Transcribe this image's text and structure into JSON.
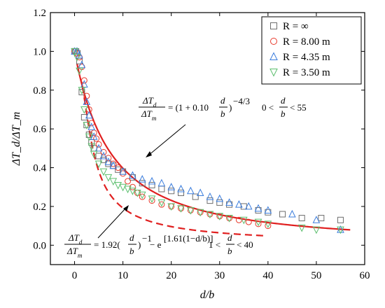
{
  "chart_data": {
    "type": "scatter",
    "xlabel": "d/b",
    "ylabel": "ΔT_d/ΔT_m",
    "xlim": [
      -5,
      60
    ],
    "ylim": [
      -0.1,
      1.2
    ],
    "xticks": [
      0,
      10,
      20,
      30,
      40,
      50,
      60
    ],
    "yticks": [
      0.0,
      0.2,
      0.4,
      0.6,
      0.8,
      1.0,
      1.2
    ],
    "x_tick_labels": [
      "0",
      "10",
      "20",
      "30",
      "40",
      "50",
      "60"
    ],
    "y_tick_labels": [
      "0.0",
      "0.2",
      "0.4",
      "0.6",
      "0.8",
      "1.0",
      "1.2"
    ],
    "grid": false,
    "legend_position": "top-right",
    "series": [
      {
        "name": "R = ∞",
        "marker": "square",
        "color": "#6e6e6e",
        "x": [
          0,
          0.3,
          0.6,
          1,
          1.5,
          2,
          2.5,
          3,
          3.5,
          4,
          5,
          6,
          7,
          8,
          9,
          10,
          12,
          14,
          16,
          18,
          20,
          22,
          25,
          28,
          30,
          32,
          35,
          38,
          40,
          43,
          47,
          51,
          55
        ],
        "y": [
          1.0,
          1.0,
          0.99,
          0.95,
          0.79,
          0.66,
          0.62,
          0.57,
          0.53,
          0.5,
          0.46,
          0.44,
          0.42,
          0.41,
          0.39,
          0.38,
          0.35,
          0.32,
          0.31,
          0.29,
          0.28,
          0.27,
          0.25,
          0.23,
          0.22,
          0.21,
          0.2,
          0.18,
          0.17,
          0.16,
          0.14,
          0.14,
          0.13
        ]
      },
      {
        "name": "R = 8.00 m",
        "marker": "circle",
        "color": "#e8392b",
        "x": [
          0,
          0.5,
          1,
          1.5,
          2,
          2.5,
          3,
          3.5,
          4,
          4.5,
          5,
          6,
          7,
          8,
          9,
          10,
          11,
          12,
          13,
          14,
          16,
          18,
          20,
          22,
          24,
          26,
          28,
          30,
          32,
          34,
          36,
          38,
          40
        ],
        "y": [
          1.0,
          0.99,
          0.97,
          0.92,
          0.85,
          0.77,
          0.7,
          0.63,
          0.58,
          0.55,
          0.52,
          0.48,
          0.45,
          0.42,
          0.4,
          0.37,
          0.33,
          0.3,
          0.27,
          0.25,
          0.23,
          0.21,
          0.2,
          0.19,
          0.18,
          0.17,
          0.16,
          0.15,
          0.14,
          0.13,
          0.12,
          0.11,
          0.1
        ]
      },
      {
        "name": "R = 4.35 m",
        "marker": "triangle-up",
        "color": "#3b7ddd",
        "x": [
          0,
          0.5,
          1,
          1.5,
          2,
          2.5,
          3,
          3.5,
          4,
          5,
          6,
          7,
          8,
          10,
          12,
          14,
          16,
          18,
          20,
          22,
          24,
          26,
          28,
          30,
          32,
          34,
          36,
          38,
          40,
          45,
          50,
          55
        ],
        "y": [
          1.0,
          1.0,
          0.98,
          0.93,
          0.83,
          0.74,
          0.67,
          0.61,
          0.56,
          0.5,
          0.46,
          0.43,
          0.41,
          0.38,
          0.36,
          0.34,
          0.33,
          0.32,
          0.3,
          0.29,
          0.28,
          0.27,
          0.25,
          0.24,
          0.22,
          0.21,
          0.2,
          0.19,
          0.18,
          0.16,
          0.13,
          0.08
        ]
      },
      {
        "name": "R = 3.50 m",
        "marker": "triangle-down",
        "color": "#5cbf6e",
        "x": [
          0,
          0.5,
          1,
          1.5,
          2,
          2.5,
          3,
          3.5,
          4,
          5,
          6,
          7,
          8,
          9,
          10,
          11,
          12,
          13,
          14,
          16,
          18,
          20,
          22,
          24,
          26,
          28,
          30,
          32,
          35,
          38,
          40,
          47,
          50,
          55
        ],
        "y": [
          1.0,
          0.97,
          0.9,
          0.8,
          0.7,
          0.62,
          0.56,
          0.51,
          0.47,
          0.42,
          0.38,
          0.35,
          0.33,
          0.31,
          0.3,
          0.29,
          0.28,
          0.27,
          0.26,
          0.24,
          0.22,
          0.2,
          0.19,
          0.18,
          0.17,
          0.16,
          0.15,
          0.14,
          0.13,
          0.12,
          0.11,
          0.09,
          0.08,
          0.08
        ]
      }
    ],
    "fit_curves": [
      {
        "style": "solid",
        "color": "#e02020",
        "formula": "(1 + 0.10*d/b)^(-4/3)",
        "range": [
          0.5,
          57
        ]
      },
      {
        "style": "dashed",
        "color": "#e02020",
        "formula": "1.92*(d/b)^(-1) - e^[1.61*(1 - d/b)]",
        "range": [
          1.6,
          39
        ]
      }
    ],
    "annotations": [
      {
        "id": "eq1",
        "lhs_num": "ΔT",
        "lhs_num_sub": "d",
        "lhs_den": "ΔT",
        "lhs_den_sub": "m",
        "rhs_prefix": "= (1 + 0.10",
        "rhs_frac_num": "d",
        "rhs_frac_den": "b",
        "rhs_suffix": ")",
        "rhs_exponent": "−4/3",
        "range_left": "0 <",
        "range_frac_num": "d",
        "range_frac_den": "b",
        "range_right": "< 55"
      },
      {
        "id": "eq2",
        "lhs_num": "ΔT",
        "lhs_num_sub": "d",
        "lhs_den": "ΔT",
        "lhs_den_sub": "m",
        "rhs_prefix": "= 1.92(",
        "rhs_frac_num": "d",
        "rhs_frac_den": "b",
        "rhs_suffix": ")",
        "rhs_exponent": "−1",
        "rhs_minus_e": " − e",
        "rhs_e_exponent": "[1.61(1−d/b)]",
        "range_left": "1 <",
        "range_frac_num": "d",
        "range_frac_den": "b",
        "range_right": "< 40"
      }
    ]
  }
}
